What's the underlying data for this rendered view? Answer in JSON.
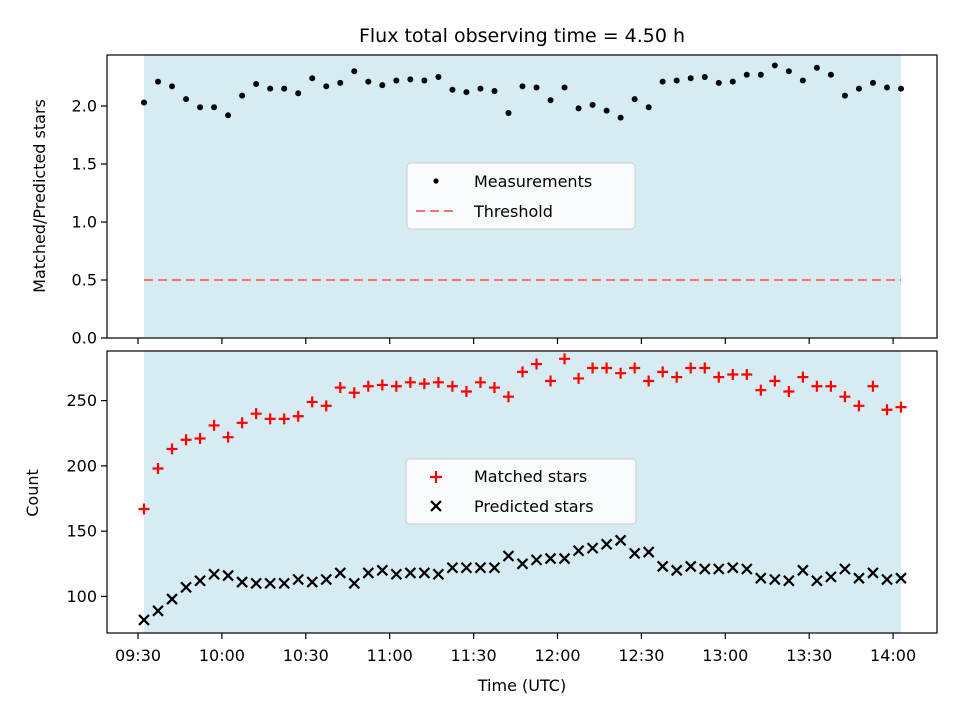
{
  "chart_data": [
    {
      "type": "scatter",
      "title": "Flux total observing time = 4.50 h",
      "xlabel": "",
      "ylabel": "Matched/Predicted stars",
      "ylim": [
        0,
        2.44
      ],
      "yticks": [
        0.0,
        0.5,
        1.0,
        1.5,
        2.0
      ],
      "ytick_labels": [
        "0.0",
        "0.5",
        "1.0",
        "1.5",
        "2.0"
      ],
      "grid": false,
      "legend_placement": "center",
      "shaded_span": {
        "color": "#add8e6"
      },
      "series": [
        {
          "name": "Measurements",
          "marker": "dot",
          "color": "#000000",
          "values": [
            2.03,
            2.21,
            2.17,
            2.06,
            1.99,
            1.99,
            1.92,
            2.09,
            2.19,
            2.15,
            2.15,
            2.11,
            2.24,
            2.17,
            2.2,
            2.3,
            2.21,
            2.18,
            2.22,
            2.23,
            2.22,
            2.25,
            2.14,
            2.12,
            2.15,
            2.13,
            1.94,
            2.17,
            2.16,
            2.05,
            2.16,
            1.98,
            2.01,
            1.96,
            1.9,
            2.06,
            1.99,
            2.21,
            2.22,
            2.24,
            2.25,
            2.2,
            2.21,
            2.27,
            2.27,
            2.35,
            2.3,
            2.22,
            2.33,
            2.27,
            2.09,
            2.15,
            2.2,
            2.16,
            2.15
          ]
        },
        {
          "name": "Threshold",
          "marker": "dashed-line",
          "color": "#ff7070",
          "constant": 0.5
        }
      ]
    },
    {
      "type": "scatter",
      "title": "",
      "xlabel": "Time (UTC)",
      "ylabel": "Count",
      "ylim": [
        72,
        288
      ],
      "yticks": [
        100,
        150,
        200,
        250
      ],
      "ytick_labels": [
        "100",
        "150",
        "200",
        "250"
      ],
      "grid": false,
      "legend_placement": "center",
      "shaded_span": {
        "color": "#add8e6"
      },
      "series": [
        {
          "name": "Matched stars",
          "marker": "plus",
          "color": "#ff0000",
          "values": [
            167,
            198,
            213,
            220,
            221,
            231,
            222,
            233,
            240,
            236,
            236,
            238,
            249,
            246,
            260,
            256,
            261,
            262,
            261,
            264,
            263,
            264,
            261,
            257,
            264,
            260,
            253,
            272,
            278,
            265,
            282,
            267,
            275,
            275,
            271,
            275,
            265,
            272,
            268,
            275,
            275,
            268,
            270,
            270,
            258,
            265,
            257,
            268,
            261,
            261,
            253,
            246,
            261,
            243,
            245
          ]
        },
        {
          "name": "Predicted stars",
          "marker": "x",
          "color": "#000000",
          "values": [
            82,
            89,
            98,
            107,
            112,
            117,
            116,
            111,
            110,
            110,
            110,
            113,
            111,
            113,
            118,
            110,
            118,
            120,
            117,
            118,
            118,
            117,
            122,
            122,
            122,
            122,
            131,
            125,
            128,
            129,
            129,
            135,
            137,
            140,
            143,
            133,
            134,
            123,
            120,
            123,
            121,
            121,
            122,
            121,
            114,
            113,
            112,
            120,
            112,
            115,
            121,
            114,
            118,
            113,
            114
          ]
        }
      ],
      "x_time_labels": [
        "09:30",
        "10:00",
        "10:30",
        "11:00",
        "11:30",
        "12:00",
        "12:30",
        "13:00",
        "13:30",
        "14:00"
      ]
    }
  ]
}
